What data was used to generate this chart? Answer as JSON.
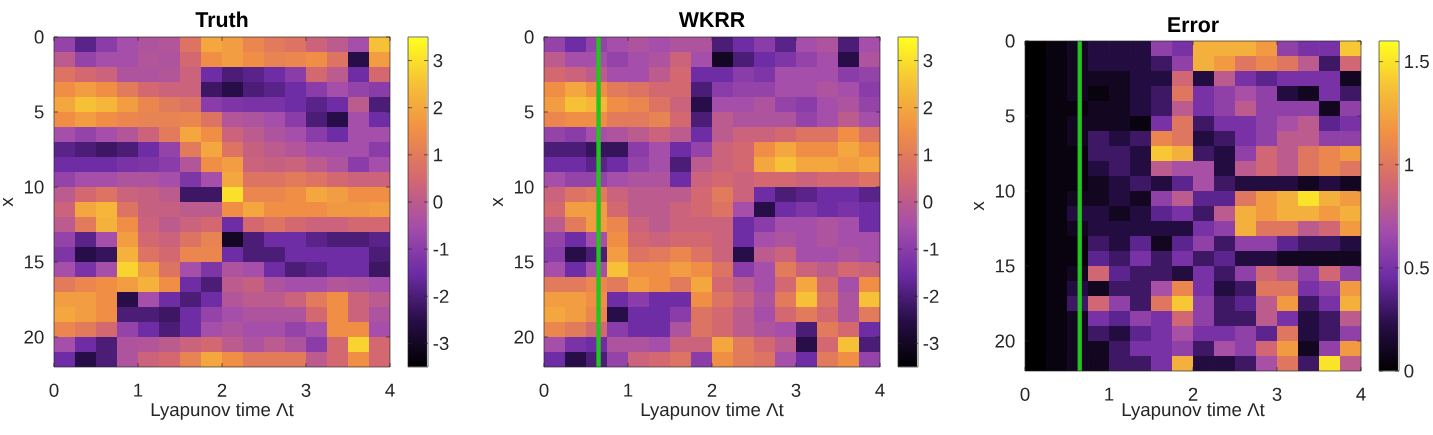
{
  "chart_data": [
    {
      "type": "heatmap",
      "title": "Truth",
      "xlabel": "Lyapunov time Λt",
      "ylabel": "x",
      "xlim": [
        0,
        4
      ],
      "xticks": [
        0,
        1,
        2,
        3,
        4
      ],
      "ylim": [
        22,
        0
      ],
      "yticks": [
        0,
        5,
        10,
        15,
        20
      ],
      "clim": [
        -3.5,
        3.5
      ],
      "cticks": [
        -3,
        -2,
        -1,
        0,
        1,
        2,
        3
      ],
      "cells": [
        [
          -0.8,
          -1.8,
          -1.0,
          -0.5,
          -0.3,
          -0.2,
          0.8,
          2.0,
          1.8,
          1.3,
          1.0,
          0.8,
          0.3,
          0.0,
          -0.5,
          2.5
        ],
        [
          0.0,
          -0.8,
          -0.5,
          -0.5,
          -0.2,
          -0.3,
          0.5,
          1.5,
          1.8,
          1.5,
          1.2,
          1.3,
          1.5,
          0.8,
          -2.5,
          1.8
        ],
        [
          0.8,
          0.5,
          0.3,
          -0.3,
          -0.3,
          -0.2,
          0.3,
          -1.5,
          -2.0,
          -1.8,
          -1.5,
          -1.0,
          0.5,
          0.0,
          -1.5,
          0.5
        ],
        [
          1.5,
          1.8,
          1.5,
          1.0,
          0.5,
          0.3,
          0.3,
          -2.2,
          -2.5,
          -2.0,
          -1.8,
          -1.5,
          -1.0,
          -0.5,
          -0.8,
          -1.0
        ],
        [
          2.0,
          2.5,
          2.3,
          1.8,
          1.3,
          1.0,
          0.8,
          -1.0,
          -1.2,
          -1.3,
          -1.3,
          -1.5,
          -1.8,
          -1.5,
          0.0,
          -2.0
        ],
        [
          1.5,
          1.8,
          1.5,
          1.3,
          1.2,
          1.2,
          1.3,
          0.8,
          -0.2,
          -0.3,
          -0.5,
          -1.0,
          -2.0,
          -2.5,
          -0.5,
          -1.5
        ],
        [
          -0.5,
          -0.8,
          -0.5,
          -0.2,
          0.3,
          1.0,
          2.0,
          1.5,
          0.3,
          0.0,
          -0.3,
          -0.5,
          -1.0,
          -1.5,
          -0.5,
          -0.5
        ],
        [
          -1.8,
          -2.0,
          -2.2,
          -2.0,
          -1.5,
          -0.8,
          1.0,
          2.0,
          0.8,
          0.2,
          0.0,
          -0.2,
          -0.5,
          -0.5,
          -0.5,
          -1.0
        ],
        [
          -1.5,
          -1.5,
          -1.5,
          -1.3,
          -1.2,
          -1.0,
          -0.2,
          1.5,
          1.8,
          0.3,
          0.2,
          0.3,
          0.0,
          -0.3,
          -1.0,
          -0.5
        ],
        [
          -0.8,
          -0.5,
          -0.5,
          -0.3,
          -0.3,
          -0.5,
          -1.2,
          -0.5,
          2.0,
          0.8,
          0.8,
          1.0,
          0.8,
          0.5,
          0.3,
          0.3
        ],
        [
          0.0,
          0.5,
          0.8,
          0.3,
          0.2,
          0.0,
          -2.2,
          -2.2,
          3.0,
          1.3,
          1.3,
          1.5,
          2.0,
          1.8,
          1.5,
          1.5
        ],
        [
          0.3,
          2.0,
          2.3,
          0.8,
          0.2,
          0.2,
          0.0,
          0.0,
          1.5,
          2.0,
          1.5,
          1.5,
          1.5,
          1.7,
          1.7,
          1.8
        ],
        [
          0.0,
          1.0,
          2.2,
          1.5,
          0.3,
          0.0,
          0.3,
          0.5,
          -1.5,
          0.5,
          0.8,
          0.5,
          0.3,
          0.3,
          0.5,
          0.5
        ],
        [
          -0.8,
          -1.8,
          -0.5,
          1.8,
          0.5,
          0.3,
          0.8,
          1.2,
          -3.0,
          -2.0,
          -1.5,
          -1.5,
          -1.8,
          -2.0,
          -2.0,
          -1.8
        ],
        [
          -1.2,
          -2.5,
          -2.3,
          2.2,
          0.8,
          0.5,
          1.3,
          1.3,
          -1.5,
          -2.0,
          -2.0,
          -1.5,
          -1.5,
          -1.5,
          -1.5,
          -2.0
        ],
        [
          -0.5,
          -1.3,
          -0.5,
          2.8,
          1.8,
          0.8,
          -0.5,
          -1.2,
          -0.3,
          -0.5,
          -1.5,
          -2.0,
          -1.8,
          -1.5,
          -1.5,
          -2.2
        ],
        [
          1.0,
          1.3,
          1.5,
          1.8,
          2.2,
          1.5,
          -1.5,
          -2.0,
          0.0,
          0.2,
          -0.3,
          -0.5,
          -0.5,
          -0.2,
          -0.3,
          -0.5
        ],
        [
          1.8,
          1.8,
          1.5,
          -2.5,
          -0.5,
          -1.5,
          -2.0,
          -1.5,
          -0.2,
          0.0,
          0.0,
          0.3,
          1.0,
          1.5,
          0.3,
          0.0
        ],
        [
          2.0,
          1.8,
          1.5,
          -2.0,
          -2.0,
          -2.2,
          -1.5,
          -0.8,
          -0.5,
          -0.3,
          -0.3,
          -0.3,
          0.5,
          1.5,
          0.3,
          -0.3
        ],
        [
          1.3,
          1.0,
          0.5,
          -0.8,
          -1.5,
          -2.0,
          -1.5,
          -0.5,
          -0.3,
          -0.5,
          -0.5,
          -0.8,
          -0.5,
          1.5,
          1.5,
          -0.5
        ],
        [
          -0.5,
          -1.5,
          -2.0,
          -0.3,
          -0.2,
          0.0,
          0.3,
          0.5,
          0.0,
          -0.3,
          0.0,
          -0.3,
          -1.0,
          0.5,
          2.8,
          0.5
        ],
        [
          -1.5,
          -2.5,
          -2.0,
          -0.3,
          0.3,
          0.5,
          1.2,
          2.0,
          1.5,
          1.0,
          1.0,
          1.0,
          0.0,
          0.5,
          1.5,
          0.5
        ]
      ]
    },
    {
      "type": "heatmap",
      "title": "WKRR",
      "xlabel": "Lyapunov time Λt",
      "ylabel": "x",
      "xlim": [
        0,
        4
      ],
      "xticks": [
        0,
        1,
        2,
        3,
        4
      ],
      "ylim": [
        22,
        0
      ],
      "yticks": [
        0,
        5,
        10,
        15,
        20
      ],
      "clim": [
        -3.5,
        3.5
      ],
      "cticks": [
        -3,
        -2,
        -1,
        0,
        1,
        2,
        3
      ],
      "ref_lines": [
        {
          "axis": "x",
          "value": 0.65,
          "color": "#22c51e"
        }
      ],
      "cells": [
        [
          -0.8,
          -1.5,
          -0.8,
          -0.5,
          -0.3,
          -0.5,
          -0.3,
          -0.3,
          -2.0,
          -1.5,
          -1.0,
          -1.8,
          -0.5,
          -0.3,
          -2.0,
          -0.5
        ],
        [
          0.0,
          -0.5,
          -0.5,
          -0.8,
          -0.5,
          -0.3,
          0.3,
          -0.5,
          -3.0,
          -2.0,
          -1.5,
          -1.2,
          -0.8,
          -0.5,
          -2.5,
          -0.3
        ],
        [
          0.5,
          0.3,
          0.0,
          -0.5,
          -0.5,
          0.0,
          0.5,
          -1.5,
          -1.5,
          -1.0,
          -1.2,
          -0.5,
          -0.5,
          -0.5,
          -1.0,
          -0.8
        ],
        [
          1.5,
          2.0,
          1.5,
          1.0,
          0.8,
          0.5,
          0.5,
          -2.0,
          -1.0,
          -0.8,
          -0.8,
          -0.5,
          -0.5,
          -0.3,
          -0.5,
          -1.0
        ],
        [
          1.8,
          2.5,
          2.3,
          1.5,
          1.3,
          0.8,
          0.3,
          -2.5,
          -0.5,
          -0.5,
          -0.3,
          -0.8,
          -1.0,
          -0.5,
          -0.3,
          -0.8
        ],
        [
          1.3,
          1.5,
          1.5,
          1.0,
          1.0,
          1.2,
          0.5,
          -2.0,
          0.0,
          -0.3,
          -0.3,
          -0.3,
          -0.8,
          -0.5,
          0.0,
          -0.5
        ],
        [
          -0.8,
          -1.0,
          -0.5,
          -0.3,
          0.0,
          0.3,
          0.0,
          -1.5,
          0.0,
          0.3,
          0.3,
          0.5,
          0.8,
          0.8,
          1.5,
          0.8
        ],
        [
          -2.0,
          -2.0,
          -2.3,
          -2.3,
          -1.0,
          -0.5,
          -1.5,
          -0.8,
          0.3,
          0.5,
          1.5,
          2.0,
          1.5,
          1.5,
          2.0,
          1.5
        ],
        [
          -1.5,
          -1.5,
          -1.8,
          -1.5,
          -0.8,
          -0.5,
          -2.0,
          0.0,
          0.3,
          0.5,
          2.0,
          2.5,
          2.0,
          2.0,
          1.8,
          2.0
        ],
        [
          -0.5,
          -0.8,
          -0.8,
          -0.5,
          -0.3,
          -0.3,
          -1.5,
          0.3,
          0.5,
          0.3,
          0.5,
          0.5,
          0.3,
          0.5,
          0.5,
          0.8
        ],
        [
          0.3,
          0.8,
          1.0,
          0.3,
          0.0,
          0.0,
          0.0,
          0.5,
          1.0,
          0.3,
          -1.5,
          -2.0,
          -1.8,
          -1.5,
          -1.5,
          -1.8
        ],
        [
          0.5,
          1.8,
          1.8,
          0.5,
          0.0,
          0.0,
          0.3,
          0.5,
          0.8,
          -0.5,
          -2.5,
          -1.5,
          -1.2,
          -1.5,
          -1.3,
          -1.5
        ],
        [
          0.0,
          1.0,
          1.8,
          1.3,
          0.3,
          0.0,
          0.3,
          0.3,
          0.3,
          -1.5,
          -1.0,
          -0.5,
          -0.5,
          -0.3,
          -0.5,
          -1.5
        ],
        [
          -0.8,
          -1.5,
          -0.5,
          1.5,
          0.5,
          0.3,
          0.5,
          0.5,
          0.3,
          -1.5,
          -0.5,
          -0.3,
          -0.5,
          -0.3,
          -0.5,
          -0.5
        ],
        [
          -1.0,
          -2.5,
          -2.0,
          1.8,
          0.8,
          1.0,
          1.3,
          0.8,
          0.3,
          -2.5,
          0.0,
          0.3,
          -0.5,
          -0.5,
          -0.3,
          -0.5
        ],
        [
          -0.5,
          -1.5,
          -0.5,
          2.5,
          1.5,
          1.5,
          1.8,
          1.5,
          0.8,
          -1.0,
          -0.5,
          1.0,
          0.3,
          0.0,
          0.5,
          0.3
        ],
        [
          1.0,
          1.0,
          1.3,
          1.0,
          1.8,
          1.5,
          1.0,
          2.0,
          0.5,
          0.0,
          -0.5,
          0.5,
          2.0,
          0.5,
          -0.5,
          1.5
        ],
        [
          1.8,
          1.8,
          1.5,
          -1.5,
          -1.0,
          -1.5,
          -1.5,
          1.5,
          0.8,
          0.3,
          -0.3,
          1.0,
          2.5,
          0.8,
          -0.3,
          2.5
        ],
        [
          2.0,
          1.8,
          1.3,
          -2.5,
          -1.5,
          -1.5,
          -1.0,
          0.8,
          0.5,
          0.0,
          -0.5,
          0.5,
          1.0,
          0.5,
          -0.3,
          1.0
        ],
        [
          1.3,
          1.0,
          0.5,
          -1.0,
          -1.5,
          -1.5,
          -0.3,
          0.8,
          0.5,
          0.0,
          -0.3,
          -0.5,
          -2.0,
          1.0,
          0.5,
          -1.5
        ],
        [
          -0.5,
          -1.3,
          -1.5,
          -0.3,
          -0.3,
          -0.5,
          0.3,
          0.3,
          2.0,
          1.0,
          0.5,
          0.0,
          -2.5,
          0.5,
          2.5,
          -2.0
        ],
        [
          -1.5,
          -2.5,
          -2.0,
          -0.8,
          0.3,
          0.5,
          0.8,
          -1.0,
          1.5,
          1.0,
          0.8,
          -0.5,
          -1.5,
          1.0,
          1.5,
          -0.8
        ]
      ]
    },
    {
      "type": "heatmap",
      "title": "Error",
      "xlabel": "Lyapunov time Λt",
      "ylabel": "x",
      "xlim": [
        0,
        4
      ],
      "xticks": [
        0,
        1,
        2,
        3,
        4
      ],
      "ylim": [
        22,
        0
      ],
      "yticks": [
        0,
        5,
        10,
        15,
        20
      ],
      "clim": [
        0,
        1.6
      ],
      "cticks": [
        0,
        0.5,
        1,
        1.5
      ],
      "ref_lines": [
        {
          "axis": "x",
          "value": 0.65,
          "color": "#22c51e"
        }
      ],
      "cells": [
        [
          0.0,
          0.05,
          0.1,
          0.2,
          0.2,
          0.2,
          0.6,
          0.5,
          1.3,
          1.3,
          1.3,
          1.2,
          0.6,
          0.5,
          0.5,
          1.4
        ],
        [
          0.0,
          0.05,
          0.1,
          0.2,
          0.2,
          0.2,
          0.3,
          0.6,
          1.3,
          1.2,
          1.0,
          1.1,
          1.0,
          0.8,
          0.3,
          0.9
        ],
        [
          0.0,
          0.05,
          0.1,
          0.1,
          0.1,
          0.2,
          0.2,
          0.9,
          0.2,
          0.8,
          0.5,
          0.4,
          0.5,
          0.5,
          0.5,
          0.1
        ],
        [
          0.0,
          0.05,
          0.1,
          0.05,
          0.1,
          0.2,
          0.3,
          1.0,
          0.5,
          0.6,
          0.7,
          0.6,
          0.2,
          0.1,
          0.5,
          0.3
        ],
        [
          0.0,
          0.05,
          0.05,
          0.1,
          0.1,
          0.2,
          0.3,
          0.8,
          0.5,
          0.6,
          0.8,
          0.6,
          0.6,
          0.6,
          0.1,
          0.6
        ],
        [
          0.0,
          0.05,
          0.1,
          0.1,
          0.1,
          0.05,
          0.5,
          1.0,
          0.3,
          0.5,
          0.5,
          0.6,
          0.7,
          0.8,
          0.4,
          0.5
        ],
        [
          0.0,
          0.05,
          0.1,
          0.3,
          0.2,
          0.3,
          1.1,
          1.0,
          0.2,
          0.3,
          0.5,
          0.6,
          0.8,
          0.8,
          0.6,
          0.6
        ],
        [
          0.0,
          0.05,
          0.05,
          0.3,
          0.3,
          0.2,
          1.4,
          1.3,
          0.3,
          0.2,
          0.6,
          0.9,
          0.8,
          1.0,
          1.1,
          1.2
        ],
        [
          0.0,
          0.05,
          0.05,
          0.2,
          0.3,
          0.2,
          0.8,
          0.7,
          0.7,
          0.2,
          0.8,
          0.9,
          0.8,
          1.0,
          1.1,
          1.0
        ],
        [
          0.0,
          0.05,
          0.05,
          0.1,
          0.2,
          0.3,
          0.2,
          0.4,
          0.7,
          0.3,
          0.2,
          0.2,
          0.2,
          0.1,
          0.2,
          0.1
        ],
        [
          0.0,
          0.05,
          0.1,
          0.1,
          0.2,
          0.1,
          0.6,
          0.8,
          0.4,
          0.4,
          1.0,
          1.2,
          1.3,
          1.5,
          1.3,
          1.2
        ],
        [
          0.0,
          0.05,
          0.2,
          0.2,
          0.1,
          0.2,
          0.4,
          0.5,
          0.3,
          0.8,
          1.3,
          1.2,
          1.3,
          1.3,
          1.2,
          1.3
        ],
        [
          0.0,
          0.05,
          0.1,
          0.2,
          0.2,
          0.2,
          0.2,
          0.2,
          0.5,
          0.6,
          1.3,
          1.0,
          1.0,
          0.8,
          0.9,
          1.2
        ],
        [
          0.0,
          0.05,
          0.05,
          0.3,
          0.2,
          0.4,
          0.1,
          0.4,
          0.6,
          0.3,
          0.6,
          0.6,
          0.4,
          0.3,
          0.3,
          0.2
        ],
        [
          0.0,
          0.05,
          0.05,
          0.4,
          0.3,
          0.5,
          0.3,
          0.5,
          0.3,
          0.4,
          0.2,
          0.2,
          0.1,
          0.1,
          0.1,
          0.1
        ],
        [
          0.0,
          0.05,
          0.1,
          0.9,
          0.4,
          0.3,
          0.3,
          0.2,
          0.5,
          0.3,
          0.6,
          0.9,
          0.8,
          0.6,
          0.9,
          0.6
        ],
        [
          0.0,
          0.05,
          0.2,
          0.1,
          0.3,
          0.3,
          0.7,
          1.1,
          0.5,
          0.2,
          0.3,
          1.0,
          1.0,
          0.5,
          0.6,
          1.2
        ],
        [
          0.0,
          0.05,
          0.3,
          0.9,
          0.6,
          0.3,
          1.0,
          1.4,
          0.6,
          0.3,
          0.4,
          0.8,
          1.2,
          0.3,
          0.5,
          1.3
        ],
        [
          0.0,
          0.05,
          0.1,
          0.5,
          0.4,
          0.6,
          0.5,
          0.9,
          0.6,
          0.3,
          0.3,
          0.8,
          0.5,
          0.2,
          0.3,
          0.8
        ],
        [
          0.0,
          0.05,
          0.1,
          0.3,
          0.2,
          0.4,
          0.5,
          0.7,
          0.5,
          0.5,
          0.6,
          0.4,
          1.0,
          0.2,
          0.3,
          0.6
        ],
        [
          0.0,
          0.05,
          0.1,
          0.1,
          0.3,
          0.5,
          0.5,
          0.6,
          0.3,
          0.7,
          0.6,
          0.9,
          1.2,
          0.1,
          0.6,
          1.2
        ],
        [
          0.0,
          0.05,
          0.1,
          0.1,
          0.3,
          0.3,
          0.5,
          1.3,
          0.2,
          0.2,
          0.3,
          0.7,
          1.0,
          0.3,
          1.5,
          0.8
        ]
      ]
    }
  ]
}
